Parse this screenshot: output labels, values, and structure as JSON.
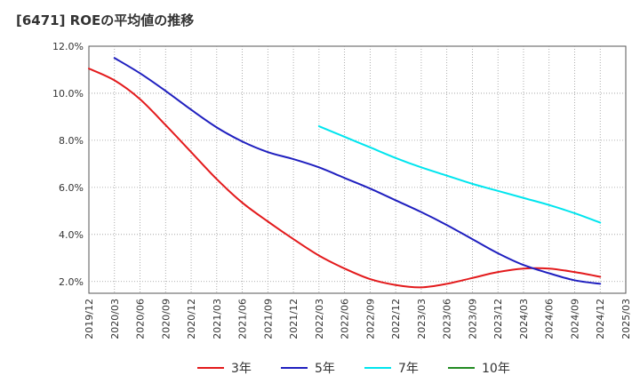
{
  "chart_data": {
    "type": "line",
    "title": "[6471]  ROEの平均値の推移",
    "xlabel": "",
    "ylabel": "",
    "ylim": [
      1.5,
      12.0
    ],
    "y_ticks": [
      "2.0%",
      "4.0%",
      "6.0%",
      "8.0%",
      "10.0%",
      "12.0%"
    ],
    "y_tick_values": [
      2,
      4,
      6,
      8,
      10,
      12
    ],
    "categories": [
      "2019/12",
      "2020/03",
      "2020/06",
      "2020/09",
      "2020/12",
      "2021/03",
      "2021/06",
      "2021/09",
      "2021/12",
      "2022/03",
      "2022/06",
      "2022/09",
      "2022/12",
      "2023/03",
      "2023/06",
      "2023/09",
      "2023/12",
      "2024/03",
      "2024/06",
      "2024/09",
      "2024/12",
      "2025/03"
    ],
    "grid": true,
    "legend_position": "bottom",
    "series": [
      {
        "name": "3年",
        "color": "#e31a1c",
        "values": [
          11.05,
          10.55,
          9.75,
          8.65,
          7.5,
          6.35,
          5.35,
          4.55,
          3.8,
          3.1,
          2.55,
          2.1,
          1.85,
          1.75,
          1.9,
          2.15,
          2.4,
          2.55,
          2.55,
          2.4,
          2.2,
          null
        ]
      },
      {
        "name": "5年",
        "color": "#1f1fbf",
        "values": [
          null,
          11.5,
          10.85,
          10.1,
          9.3,
          8.55,
          7.95,
          7.5,
          7.2,
          6.85,
          6.4,
          5.95,
          5.45,
          4.95,
          4.4,
          3.8,
          3.2,
          2.7,
          2.35,
          2.05,
          1.9,
          null
        ]
      },
      {
        "name": "7年",
        "color": "#00e5ee",
        "values": [
          null,
          null,
          null,
          null,
          null,
          null,
          null,
          null,
          null,
          8.6,
          8.15,
          7.7,
          7.25,
          6.85,
          6.5,
          6.15,
          5.85,
          5.55,
          5.25,
          4.9,
          4.5,
          null
        ]
      },
      {
        "name": "10年",
        "color": "#228b22",
        "values": [
          null,
          null,
          null,
          null,
          null,
          null,
          null,
          null,
          null,
          null,
          null,
          null,
          null,
          null,
          null,
          null,
          null,
          null,
          null,
          null,
          null,
          null
        ]
      }
    ]
  }
}
